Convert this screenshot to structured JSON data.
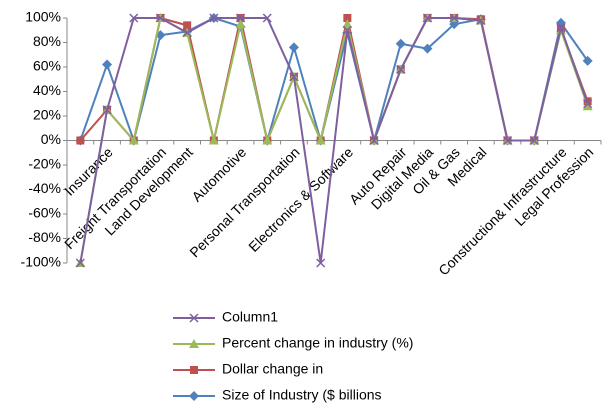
{
  "chart_data": {
    "type": "line",
    "categories": [
      null,
      "Insurance",
      null,
      "Freight Transportation",
      "Land Development",
      null,
      "Automotive",
      null,
      "Personal Transportation",
      null,
      "Electronics & Software",
      null,
      "Auto Repair",
      "Digital Media",
      "Oil & Gas",
      "Medical",
      null,
      null,
      "Construction& Infrastructure",
      "Legal Profession"
    ],
    "series": [
      {
        "name": "Column1",
        "color": "#7f5fa0",
        "marker": "x",
        "values": [
          -100,
          25,
          100,
          100,
          88,
          100,
          100,
          100,
          52,
          -100,
          90,
          0,
          58,
          100,
          100,
          98,
          0,
          0,
          92,
          30
        ]
      },
      {
        "name": "Percent change in industry (%)",
        "color": "#9bbb59",
        "marker": "triangle",
        "values": [
          -100,
          25,
          0,
          100,
          88,
          0,
          95,
          0,
          52,
          0,
          95,
          0,
          58,
          100,
          100,
          98,
          0,
          0,
          90,
          28
        ]
      },
      {
        "name": "Dollar change in",
        "color": "#c0504d",
        "marker": "square",
        "values": [
          0,
          25,
          0,
          100,
          94,
          0,
          100,
          0,
          52,
          0,
          100,
          0,
          58,
          100,
          100,
          99,
          0,
          0,
          91,
          32
        ]
      },
      {
        "name": "Size of Industry ($ billions",
        "color": "#4f81bd",
        "marker": "diamond",
        "values": [
          0,
          62,
          0,
          86,
          89,
          100,
          93,
          0,
          76,
          0,
          88,
          0,
          79,
          75,
          95,
          99,
          0,
          0,
          96,
          65
        ]
      }
    ],
    "ylim": [
      -100,
      100
    ],
    "yticks": [
      {
        "value": -100,
        "label": "-100%"
      },
      {
        "value": -80,
        "label": "-80%"
      },
      {
        "value": -60,
        "label": "-60%"
      },
      {
        "value": -40,
        "label": "-40%"
      },
      {
        "value": -20,
        "label": "-20%"
      },
      {
        "value": 0,
        "label": "0%"
      },
      {
        "value": 20,
        "label": "20%"
      },
      {
        "value": 40,
        "label": "40%"
      },
      {
        "value": 60,
        "label": "60%"
      },
      {
        "value": 80,
        "label": "80%"
      },
      {
        "value": 100,
        "label": "100%"
      }
    ],
    "grid": false,
    "legend": "bottom"
  }
}
